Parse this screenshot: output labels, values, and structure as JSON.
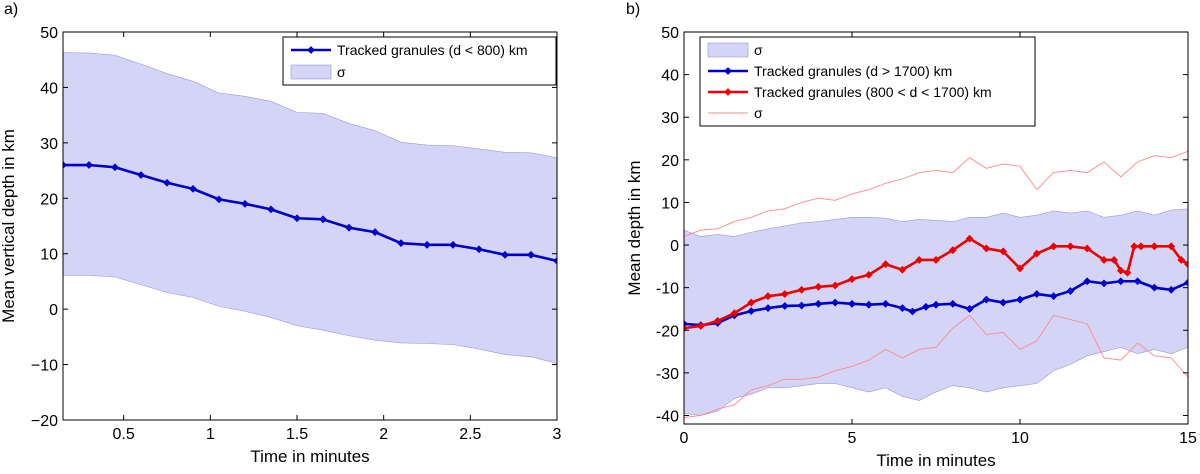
{
  "chart_data": [
    {
      "type": "line",
      "panel_label": "a)",
      "xlabel": "Time in minutes",
      "ylabel": "Mean vertical depth in km",
      "xlim": [
        0.15,
        3.0
      ],
      "ylim": [
        -20,
        50
      ],
      "xticks": [
        0.5,
        1,
        1.5,
        2,
        2.5,
        3
      ],
      "xtick_labels": [
        "0.5",
        "1",
        "1.5",
        "2",
        "2.5",
        "3"
      ],
      "yticks": [
        -20,
        -10,
        0,
        10,
        20,
        30,
        40,
        50
      ],
      "ytick_labels": [
        "−20",
        "−10",
        "0",
        "10",
        "20",
        "30",
        "40",
        "50"
      ],
      "legend_position": "top-right",
      "legend": [
        {
          "label": "Tracked granules (d < 800) km",
          "kind": "line-marker",
          "color": "#0000cc"
        },
        {
          "label": "σ",
          "kind": "patch",
          "color": "#d4d4f7"
        }
      ],
      "series": [
        {
          "name": "Tracked granules (d < 800) km",
          "color": "#0000cc",
          "x": [
            0.15,
            0.3,
            0.45,
            0.6,
            0.75,
            0.9,
            1.05,
            1.2,
            1.35,
            1.5,
            1.65,
            1.8,
            1.95,
            2.1,
            2.25,
            2.4,
            2.55,
            2.7,
            2.85,
            3.0
          ],
          "y": [
            26,
            26,
            25.6,
            24.2,
            22.8,
            21.7,
            19.8,
            19.0,
            18.0,
            16.4,
            16.2,
            14.7,
            13.9,
            11.9,
            11.6,
            11.6,
            10.8,
            9.8,
            9.8,
            8.7
          ]
        }
      ],
      "band": {
        "name": "σ",
        "color": "#d4d4f7",
        "x": [
          0.15,
          0.3,
          0.45,
          0.6,
          0.75,
          0.9,
          1.05,
          1.2,
          1.35,
          1.5,
          1.65,
          1.8,
          1.95,
          2.1,
          2.25,
          2.4,
          2.55,
          2.7,
          2.85,
          3.0
        ],
        "upper": [
          46.3,
          46.2,
          45.8,
          44.2,
          42.5,
          41.1,
          39.0,
          38.4,
          37.5,
          35.5,
          35.3,
          33.5,
          32.2,
          30.1,
          29.6,
          29.5,
          28.9,
          28.3,
          28.2,
          27.3
        ],
        "lower": [
          6.1,
          6.1,
          5.8,
          4.4,
          3.0,
          2.1,
          0.5,
          -0.4,
          -1.5,
          -3.0,
          -3.8,
          -4.8,
          -5.6,
          -6.1,
          -6.2,
          -6.4,
          -7.2,
          -8.2,
          -8.6,
          -9.8
        ]
      }
    },
    {
      "type": "line",
      "panel_label": "b)",
      "xlabel": "Time in minutes",
      "ylabel": "Mean depth in km",
      "xlim": [
        0,
        15
      ],
      "ylim": [
        -42,
        50
      ],
      "xticks": [
        0,
        5,
        10,
        15
      ],
      "xtick_labels": [
        "0",
        "5",
        "10",
        "15"
      ],
      "yticks": [
        -40,
        -30,
        -20,
        -10,
        0,
        10,
        20,
        30,
        40,
        50
      ],
      "ytick_labels": [
        "-40",
        "-30",
        "-20",
        "-10",
        "0",
        "10",
        "20",
        "30",
        "40",
        "50"
      ],
      "legend_position": "top-left",
      "legend": [
        {
          "label": "σ",
          "kind": "patch",
          "color": "#d4d4f7"
        },
        {
          "label": "Tracked granules (d > 1700) km",
          "kind": "line-marker",
          "color": "#0000cc"
        },
        {
          "label": "Tracked granules (800 < d < 1700) km",
          "kind": "line-marker",
          "color": "#ee0000"
        },
        {
          "label": "σ",
          "kind": "thin-line",
          "color": "#ff8a8a"
        }
      ],
      "series": [
        {
          "name": "Tracked granules (d > 1700) km",
          "color": "#0000cc",
          "x": [
            0,
            0.5,
            1,
            1.5,
            2,
            2.5,
            3,
            3.5,
            4,
            4.5,
            5,
            5.5,
            6,
            6.5,
            6.8,
            7.2,
            7.5,
            8,
            8.5,
            9,
            9.5,
            10,
            10.5,
            11,
            11.5,
            12,
            12.5,
            13,
            13.5,
            14,
            14.5,
            15
          ],
          "y": [
            -18.5,
            -18.8,
            -18.3,
            -16.5,
            -15.5,
            -14.8,
            -14.3,
            -14.2,
            -13.8,
            -13.5,
            -13.8,
            -14.0,
            -13.8,
            -14.8,
            -15.6,
            -14.5,
            -14.0,
            -13.8,
            -15.0,
            -12.8,
            -13.5,
            -12.8,
            -11.5,
            -12.0,
            -10.8,
            -8.5,
            -9.0,
            -8.5,
            -8.5,
            -10.0,
            -10.5,
            -8.8
          ]
        },
        {
          "name": "Tracked granules (800 < d < 1700) km",
          "color": "#ee0000",
          "x": [
            0,
            0.5,
            1,
            1.5,
            2,
            2.5,
            3,
            3.5,
            4,
            4.5,
            5,
            5.5,
            6,
            6.5,
            7,
            7.5,
            8,
            8.5,
            9,
            9.5,
            10,
            10.5,
            11,
            11.5,
            12,
            12.5,
            12.8,
            13,
            13.2,
            13.4,
            13.6,
            14,
            14.5,
            14.8,
            15
          ],
          "y": [
            -19.5,
            -19.0,
            -17.8,
            -16.0,
            -13.5,
            -12.0,
            -11.5,
            -10.5,
            -9.8,
            -9.5,
            -8.0,
            -7.0,
            -4.5,
            -5.8,
            -3.5,
            -3.5,
            -1.2,
            1.5,
            -0.8,
            -1.5,
            -5.5,
            -2.0,
            -0.3,
            -0.3,
            -0.8,
            -3.5,
            -3.5,
            -6.0,
            -6.5,
            -0.3,
            -0.3,
            -0.3,
            -0.3,
            -3.5,
            -4.5
          ]
        }
      ],
      "band": {
        "name": "σ",
        "color": "#d4d4f7",
        "x": [
          0,
          0.5,
          1,
          1.5,
          2,
          2.5,
          3,
          3.5,
          4,
          4.5,
          5,
          5.5,
          6,
          6.5,
          7,
          7.5,
          8,
          8.5,
          9,
          9.5,
          10,
          10.5,
          11,
          11.5,
          12,
          12.5,
          13,
          13.5,
          14,
          14.5,
          15
        ],
        "upper": [
          3.5,
          2.0,
          2.5,
          2.0,
          3.0,
          3.8,
          4.5,
          5.2,
          5.5,
          6.0,
          6.5,
          6.5,
          6.3,
          5.5,
          6.0,
          5.8,
          5.5,
          6.5,
          6.5,
          7.5,
          6.5,
          7.0,
          8.0,
          7.5,
          8.0,
          6.5,
          7.0,
          8.0,
          7.0,
          8.2,
          8.5
        ],
        "lower": [
          -39.5,
          -40.0,
          -39.0,
          -36.0,
          -35.0,
          -33.5,
          -33.5,
          -33.0,
          -32.5,
          -32.5,
          -33.5,
          -34.5,
          -33.5,
          -35.5,
          -36.5,
          -34.5,
          -33.0,
          -33.5,
          -34.5,
          -33.5,
          -33.0,
          -32.5,
          -29.5,
          -28.0,
          -26.0,
          -25.0,
          -24.0,
          -25.5,
          -24.5,
          -25.5,
          -24.0
        ]
      },
      "thin_lines": [
        {
          "name": "σ upper",
          "color": "#ff8a8a",
          "x": [
            0,
            0.5,
            1,
            1.5,
            2,
            2.5,
            3,
            3.5,
            4,
            4.5,
            5,
            5.5,
            6,
            6.5,
            7,
            7.5,
            8,
            8.5,
            9,
            9.5,
            10,
            10.5,
            11,
            11.5,
            12,
            12.5,
            13,
            13.5,
            14,
            14.5,
            15
          ],
          "y": [
            2.0,
            3.5,
            3.8,
            5.5,
            6.5,
            8.0,
            8.5,
            10.0,
            11.0,
            10.5,
            12.0,
            13.0,
            14.5,
            15.5,
            17.0,
            17.5,
            17.0,
            20.5,
            18.0,
            19.0,
            18.5,
            13.0,
            17.0,
            17.5,
            17.0,
            19.5,
            16.0,
            19.5,
            21.0,
            20.5,
            22.0
          ]
        },
        {
          "name": "σ lower",
          "color": "#ff8a8a",
          "x": [
            0,
            0.5,
            1,
            1.5,
            2,
            2.5,
            3,
            3.5,
            4,
            4.5,
            5,
            5.5,
            6,
            6.5,
            7,
            7.5,
            8,
            8.5,
            9,
            9.5,
            10,
            10.5,
            11,
            11.5,
            12,
            12.5,
            13,
            13.5,
            14,
            14.5,
            15
          ],
          "y": [
            -40.5,
            -40.0,
            -38.5,
            -37.5,
            -34.0,
            -33.0,
            -31.5,
            -31.5,
            -31.0,
            -29.5,
            -28.5,
            -27.0,
            -24.5,
            -26.5,
            -24.5,
            -24.0,
            -19.5,
            -16.5,
            -21.0,
            -20.5,
            -24.5,
            -22.5,
            -16.5,
            -17.5,
            -18.5,
            -26.5,
            -27.0,
            -23.0,
            -26.0,
            -26.5,
            -31.0
          ]
        }
      ]
    }
  ]
}
